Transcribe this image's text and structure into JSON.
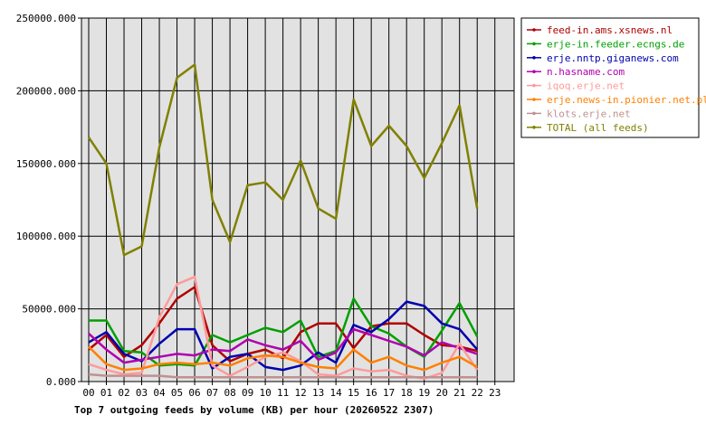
{
  "chart_data": {
    "type": "line",
    "title": "Top 7 outgoing feeds by volume (KB) per hour (20260522 2307)",
    "xlabel": "",
    "ylabel": "",
    "grid": true,
    "legend_placement": "right",
    "ylim": [
      0,
      250000
    ],
    "yticks": [
      "0.000",
      "50000.000",
      "100000.000",
      "150000.000",
      "200000.000",
      "250000.000"
    ],
    "x": [
      "00",
      "01",
      "02",
      "03",
      "04",
      "05",
      "06",
      "07",
      "08",
      "09",
      "10",
      "11",
      "12",
      "13",
      "14",
      "15",
      "16",
      "17",
      "18",
      "19",
      "20",
      "21",
      "22",
      "23"
    ],
    "series": [
      {
        "name": "feed-in.ams.xsnews.nl",
        "color": "#b00000",
        "values": [
          22000,
          32000,
          17000,
          25000,
          40000,
          57000,
          65000,
          25000,
          14000,
          19000,
          22000,
          16000,
          34000,
          40000,
          40000,
          23000,
          38000,
          40000,
          40000,
          32000,
          25000,
          24000,
          21000,
          null
        ]
      },
      {
        "name": "erje-in.feeder.ecngs.de",
        "color": "#00a000",
        "values": [
          42000,
          42000,
          21000,
          20000,
          11000,
          12000,
          11000,
          32000,
          27000,
          32000,
          37000,
          34000,
          42000,
          17000,
          21000,
          57000,
          38000,
          33000,
          24000,
          17000,
          35000,
          54000,
          31000,
          null
        ]
      },
      {
        "name": "erje.nntp.giganews.com",
        "color": "#0000b0",
        "values": [
          27000,
          34000,
          19000,
          14000,
          26000,
          36000,
          36000,
          9000,
          17000,
          19000,
          10000,
          8000,
          11000,
          20000,
          13000,
          39000,
          34000,
          43000,
          55000,
          52000,
          40000,
          36000,
          22000,
          null
        ]
      },
      {
        "name": "n.hasname.com",
        "color": "#b000b0",
        "values": [
          33000,
          22000,
          13000,
          15000,
          17000,
          19000,
          18000,
          22000,
          21000,
          29000,
          25000,
          22000,
          28000,
          15000,
          20000,
          36000,
          32000,
          28000,
          24000,
          18000,
          27000,
          23000,
          19000,
          null
        ]
      },
      {
        "name": "iqoq.erje.net",
        "color": "#ff9a9a",
        "values": [
          12000,
          8000,
          5000,
          6000,
          44000,
          67000,
          72000,
          11000,
          4000,
          10000,
          17000,
          20000,
          14000,
          5000,
          4000,
          9000,
          7000,
          8000,
          4000,
          2000,
          6000,
          26000,
          8000,
          null
        ]
      },
      {
        "name": "erje.news-in.pionier.net.pl",
        "color": "#ff8000",
        "values": [
          24000,
          12000,
          8000,
          9000,
          12000,
          13000,
          12000,
          13000,
          11000,
          16000,
          18000,
          17000,
          13000,
          10000,
          9000,
          22000,
          13000,
          17000,
          11000,
          8000,
          13000,
          17000,
          10000,
          null
        ]
      },
      {
        "name": "klots.erje.net",
        "color": "#c09090",
        "values": [
          5000,
          4000,
          4000,
          4000,
          4000,
          3000,
          3000,
          3000,
          3000,
          3000,
          3000,
          3000,
          3000,
          3000,
          3000,
          3000,
          3000,
          3000,
          3000,
          3000,
          3000,
          3000,
          3000,
          null
        ]
      },
      {
        "name": "TOTAL (all feeds)",
        "color": "#808000",
        "values": [
          168000,
          150000,
          87000,
          93000,
          161000,
          209000,
          218000,
          125000,
          96000,
          135000,
          137000,
          125000,
          152000,
          119000,
          112000,
          194000,
          162000,
          176000,
          162000,
          140000,
          164000,
          190000,
          119000,
          null
        ]
      }
    ]
  }
}
